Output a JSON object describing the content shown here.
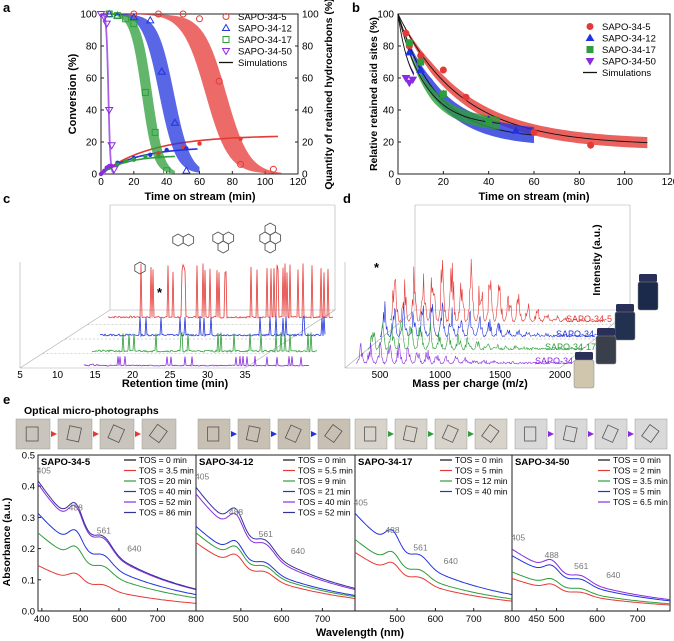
{
  "figure": {
    "series_colors": [
      "#e53935",
      "#2233dd",
      "#2e9e3a",
      "#8a2be2"
    ],
    "sim_color": "#111111"
  },
  "chart_data": [
    {
      "panel": "a",
      "type": "line",
      "xlabel": "Time on stream (min)",
      "ylabel": "Conversion (%)",
      "y2label": "Quantity of retained hydrocarbons (%)",
      "xlim": [
        0,
        120
      ],
      "ylim": [
        0,
        100
      ],
      "y2lim": [
        0,
        100
      ],
      "xticks": [
        0,
        20,
        40,
        60,
        80,
        100,
        120
      ],
      "yticks": [
        0,
        20,
        40,
        60,
        80,
        100
      ],
      "y2ticks": [
        0,
        20,
        40,
        60,
        80,
        100
      ],
      "legend": [
        "SAPO-34-5",
        "SAPO-34-12",
        "SAPO-34-17",
        "SAPO-34-50",
        "Simulations"
      ],
      "series": [
        {
          "name": "SAPO-34-5",
          "conversion": {
            "x": [
              5,
              20,
              35,
              50,
              60,
              72,
              85,
              105
            ],
            "y": [
              100,
              100,
              100,
              100,
              97,
              58,
              6,
              3
            ]
          },
          "retained": {
            "x": [
              5,
              20,
              35,
              50,
              60,
              85
            ],
            "y": [
              4,
              9,
              13,
              17,
              19,
              22
            ]
          }
        },
        {
          "name": "SAPO-34-12",
          "conversion": {
            "x": [
              5,
              10,
              20,
              30,
              37,
              45,
              52
            ],
            "y": [
              100,
              99,
              98,
              96,
              64,
              32,
              2
            ]
          },
          "retained": {
            "x": [
              5,
              10,
              20,
              30,
              40,
              52
            ],
            "y": [
              4,
              7,
              10,
              12,
              15,
              16
            ]
          }
        },
        {
          "name": "SAPO-34-17",
          "conversion": {
            "x": [
              5,
              10,
              15,
              20,
              27,
              33,
              40
            ],
            "y": [
              100,
              99,
              97,
              94,
              51,
              26,
              2
            ]
          },
          "retained": {
            "x": [
              5,
              10,
              15,
              20,
              27,
              35
            ],
            "y": [
              4,
              6,
              8,
              9,
              11,
              11
            ]
          }
        },
        {
          "name": "SAPO-34-50",
          "conversion": {
            "x": [
              0,
              2,
              3.5,
              5,
              6.5,
              8
            ],
            "y": [
              100,
              98,
              94,
              40,
              18,
              3
            ]
          },
          "retained": {
            "x": [
              0,
              2,
              3.5,
              5,
              6.5
            ],
            "y": [
              0,
              2,
              4,
              5,
              5
            ]
          }
        }
      ]
    },
    {
      "panel": "b",
      "type": "scatter",
      "xlabel": "Time on stream (min)",
      "ylabel": "Relative retained acid sites (%)",
      "xlim": [
        0,
        120
      ],
      "ylim": [
        0,
        100
      ],
      "xticks": [
        0,
        20,
        40,
        60,
        80,
        100,
        120
      ],
      "yticks": [
        0,
        20,
        40,
        60,
        80,
        100
      ],
      "legend": [
        "SAPO-34-5",
        "SAPO-34-12",
        "SAPO-34-17",
        "SAPO-34-50",
        "Simulations"
      ],
      "series": [
        {
          "name": "SAPO-34-5",
          "x": [
            3.5,
            5,
            10,
            20,
            30,
            60,
            85
          ],
          "y": [
            88,
            80,
            74,
            65,
            48,
            26,
            18
          ]
        },
        {
          "name": "SAPO-34-12",
          "x": [
            5,
            10,
            20,
            40,
            52
          ],
          "y": [
            76,
            65,
            50,
            34,
            27
          ]
        },
        {
          "name": "SAPO-34-17",
          "x": [
            5,
            10,
            20,
            40
          ],
          "y": [
            82,
            70,
            50,
            33
          ]
        },
        {
          "name": "SAPO-34-50",
          "x": [
            3.5,
            5,
            6.5
          ],
          "y": [
            60,
            57,
            59
          ]
        }
      ]
    },
    {
      "panel": "c",
      "type": "line",
      "xlabel": "Retention time (min)",
      "xticks": [
        5,
        10,
        15,
        20,
        25,
        30,
        35
      ],
      "annotation": "*",
      "series": [
        "SAPO-34-5",
        "SAPO-34-12",
        "SAPO-34-17",
        "SAPO-34-50"
      ]
    },
    {
      "panel": "d",
      "type": "line",
      "xlabel": "Mass per charge (m/z)",
      "zlabel": "Intensity (a.u.)",
      "xticks": [
        500,
        1000,
        1500,
        2000
      ],
      "annotation": "*",
      "series": [
        "SAPO-34-5",
        "SAPO-34-12",
        "SAPO-34-17",
        "SAPO-34-50"
      ]
    },
    {
      "panel": "e",
      "type": "line",
      "title": "Optical micro-photographs",
      "xlabel": "Wavelength (nm)",
      "ylabel": "Absorbance (a.u.)",
      "ylim": [
        0,
        0.5
      ],
      "yticks": [
        0.0,
        0.1,
        0.2,
        0.3,
        0.4,
        0.5
      ],
      "subplots": [
        {
          "name": "SAPO-34-5",
          "xticks": [
            400,
            500,
            600,
            700,
            800
          ],
          "legend": [
            "TOS = 0 min",
            "TOS = 3.5 min",
            "TOS = 20 min",
            "TOS = 40 min",
            "TOS = 52 min",
            "TOS = 86 min"
          ],
          "peaks": [
            "405",
            "488",
            "561",
            "640"
          ],
          "peak_nm": [
            405,
            488,
            561,
            640
          ],
          "start": [
            0.0,
            0.14,
            0.24,
            0.3,
            0.39,
            0.4
          ]
        },
        {
          "name": "SAPO-34-12",
          "xticks": [
            500,
            600,
            700
          ],
          "legend": [
            "TOS = 0 min",
            "TOS = 5.5 min",
            "TOS = 9 min",
            "TOS = 21 min",
            "TOS = 40 min",
            "TOS = 52 min"
          ],
          "peaks": [
            "405",
            "488",
            "561",
            "640"
          ],
          "peak_nm": [
            405,
            488,
            561,
            640
          ],
          "start": [
            0.0,
            0.21,
            0.24,
            0.26,
            0.36,
            0.38
          ]
        },
        {
          "name": "SAPO-34-17",
          "xticks": [
            500,
            600,
            700,
            800
          ],
          "legend": [
            "TOS = 0 min",
            "TOS = 5 min",
            "TOS = 12 min",
            "TOS = 40 min"
          ],
          "peaks": [
            "405",
            "488",
            "561",
            "640"
          ],
          "peak_nm": [
            405,
            488,
            561,
            640
          ],
          "start": [
            0.0,
            0.18,
            0.22,
            0.3
          ]
        },
        {
          "name": "SAPO-34-50",
          "xticks": [
            450,
            500,
            600,
            700
          ],
          "legend": [
            "TOS = 0 min",
            "TOS = 2 min",
            "TOS = 3.5 min",
            "TOS = 5 min",
            "TOS = 6.5 min"
          ],
          "peaks": [
            "405",
            "488",
            "561",
            "640"
          ],
          "peak_nm": [
            405,
            488,
            561,
            640
          ],
          "start": [
            0.0,
            0.1,
            0.12,
            0.17,
            0.19
          ]
        }
      ]
    }
  ],
  "panels": {
    "a": {
      "letter": "a"
    },
    "b": {
      "letter": "b"
    },
    "c": {
      "letter": "c"
    },
    "d": {
      "letter": "d"
    },
    "e": {
      "letter": "e"
    }
  }
}
